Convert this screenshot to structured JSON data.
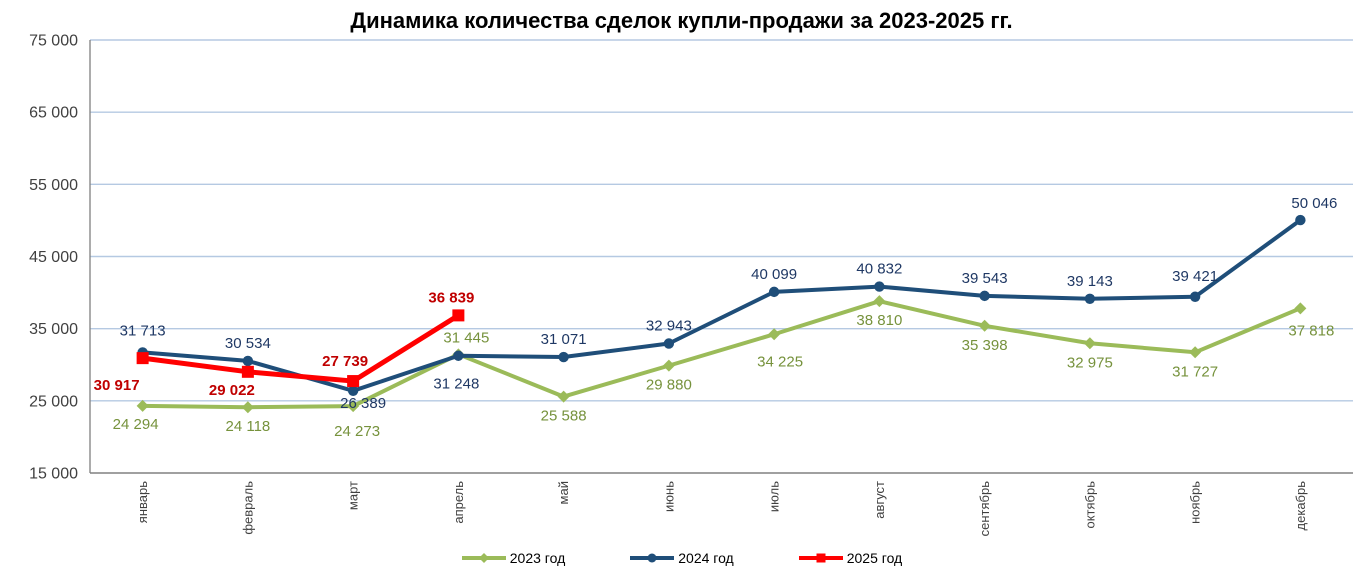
{
  "chart_data": {
    "type": "line",
    "title": "Динамика количества сделок купли-продажи за 2023-2025 гг.",
    "categories": [
      "январь",
      "февраль",
      "март",
      "апрель",
      "май",
      "июнь",
      "июль",
      "август",
      "сентябрь",
      "октябрь",
      "ноябрь",
      "декабрь"
    ],
    "series": [
      {
        "name": "2023 год",
        "year": "2023",
        "color": "#9BBB59",
        "label_color": "#76923C",
        "marker": "diamond",
        "values": [
          24294,
          24118,
          24273,
          31445,
          25588,
          29880,
          34225,
          38810,
          35398,
          32975,
          31727,
          37818
        ],
        "labels": [
          "24 294",
          "24 118",
          "24 273",
          "31 445",
          "25 588",
          "29 880",
          "34 225",
          "38 810",
          "35 398",
          "32 975",
          "31 727",
          "37 818"
        ]
      },
      {
        "name": "2024 год",
        "year": "2024",
        "color": "#1F4E79",
        "label_color": "#1F3864",
        "marker": "circle",
        "values": [
          31713,
          30534,
          26389,
          31248,
          31071,
          32943,
          40099,
          40832,
          39543,
          39143,
          39421,
          50046
        ],
        "labels": [
          "31 713",
          "30 534",
          "26 389",
          "31 248",
          "31 071",
          "32 943",
          "40 099",
          "40 832",
          "39 543",
          "39 143",
          "39 421",
          "50 046"
        ]
      },
      {
        "name": "2025 год",
        "year": "2025",
        "color": "#FF0000",
        "label_color": "#C00000",
        "marker": "square",
        "values": [
          30917,
          29022,
          27739,
          36839
        ],
        "labels": [
          "30 917",
          "29 022",
          "27 739",
          "36 839"
        ]
      }
    ],
    "ylim": [
      15000,
      75000
    ],
    "ytick_step": 10000,
    "ytick_labels": [
      "15 000",
      "25 000",
      "35 000",
      "45 000",
      "55 000",
      "65 000",
      "75 000"
    ],
    "grid": true,
    "legend_position": "bottom",
    "axis_color": "#808080",
    "gridline_color": "#B5C9E2"
  }
}
